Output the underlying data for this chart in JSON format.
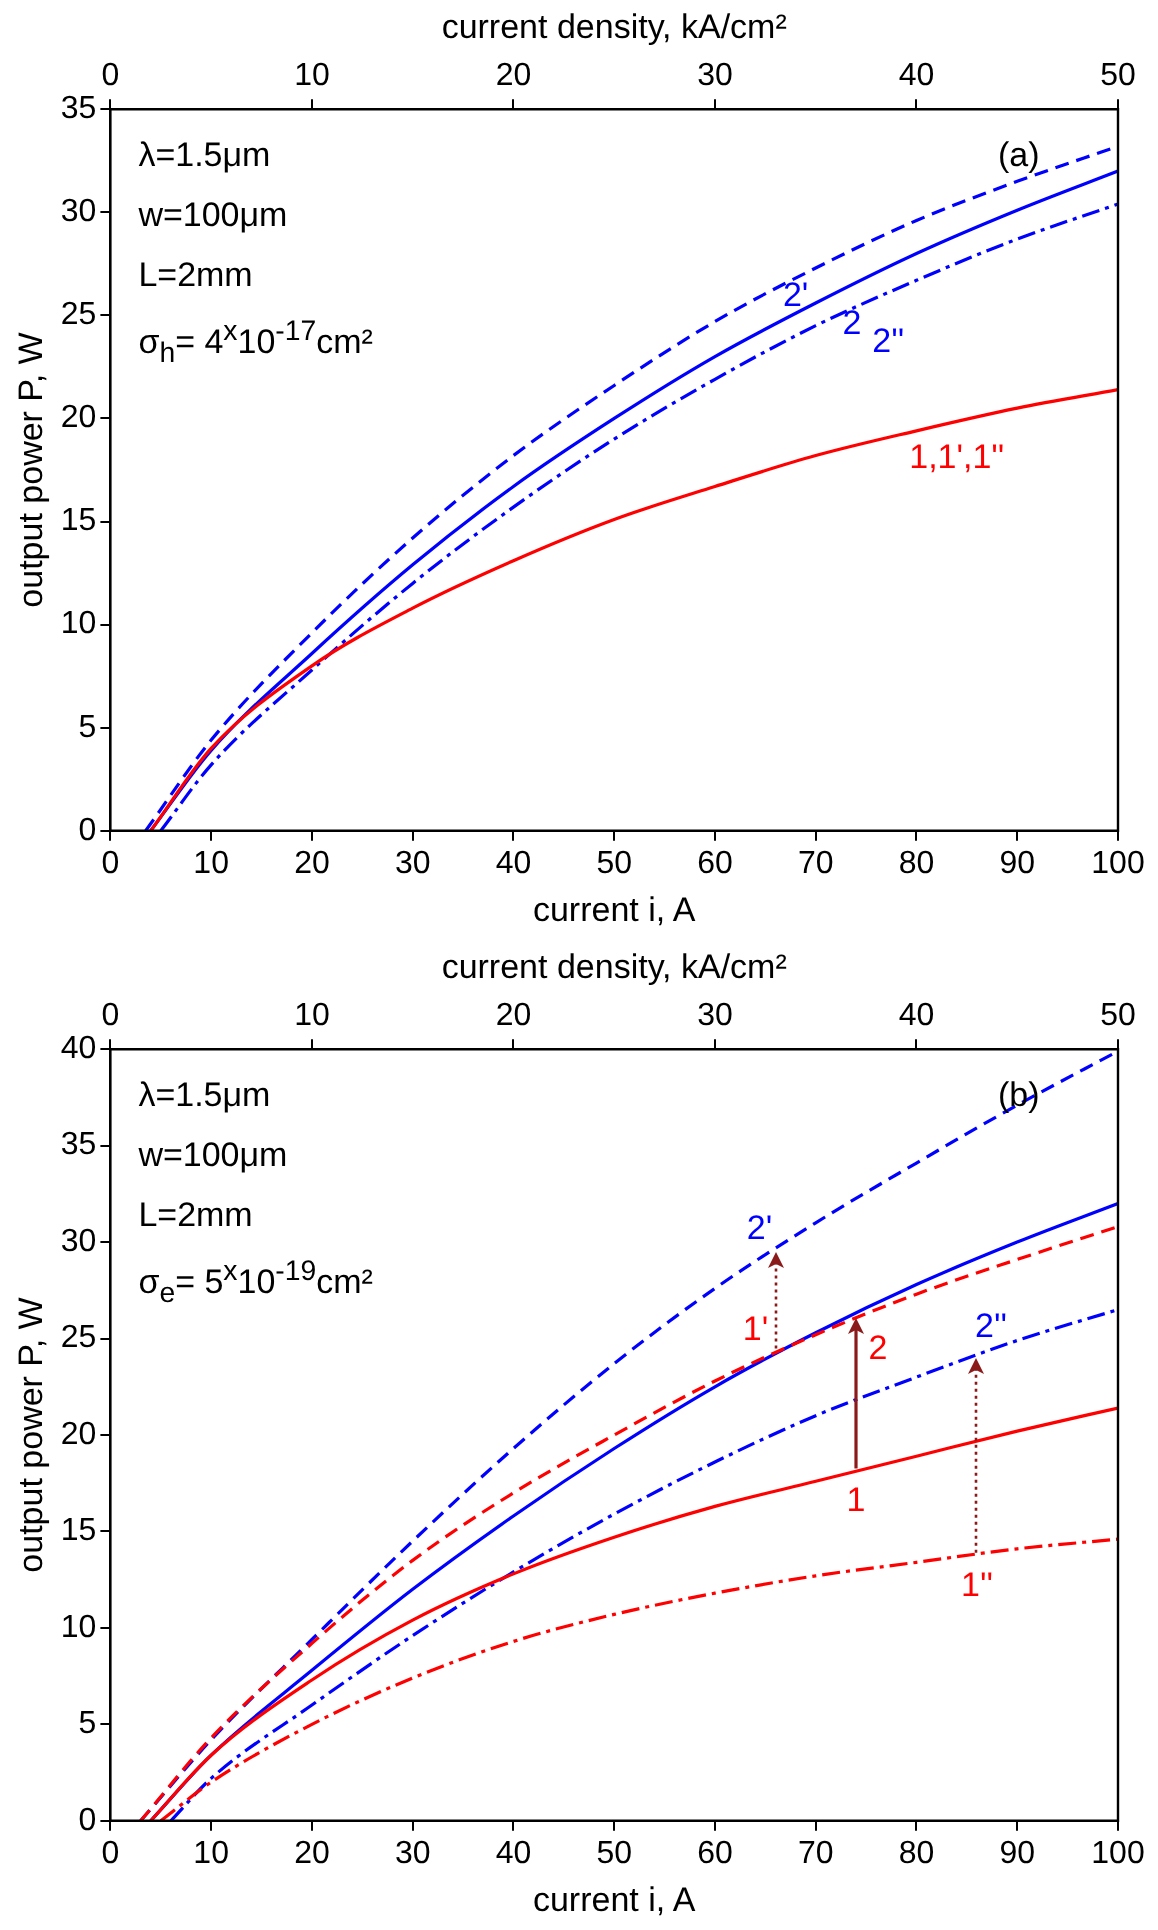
{
  "chart_data": [
    {
      "type": "line",
      "xlabel": "current i, A",
      "ylabel": "output power P, W",
      "x2label": "current density, kA/cm²",
      "xlim": [
        0,
        100
      ],
      "xticks": [
        0,
        10,
        20,
        30,
        40,
        50,
        60,
        70,
        80,
        90,
        100
      ],
      "x2lim": [
        0,
        50
      ],
      "x2ticks": [
        0,
        10,
        20,
        30,
        40,
        50
      ],
      "ylim": [
        0,
        35
      ],
      "yticks": [
        0,
        5,
        10,
        15,
        20,
        25,
        30,
        35
      ],
      "grid": false,
      "legend": false,
      "series": [
        {
          "color": "#ff0000",
          "line_style": "solid",
          "x": [
            4,
            10,
            20,
            30,
            40,
            50,
            60,
            70,
            80,
            90,
            100
          ],
          "values": [
            0,
            4.0,
            8.0,
            10.8,
            13.1,
            15.1,
            16.7,
            18.2,
            19.4,
            20.5,
            21.4
          ]
        },
        {
          "color": "#0000ff",
          "line_style": "solid",
          "x": [
            4,
            10,
            20,
            30,
            40,
            50,
            60,
            70,
            80,
            90,
            100
          ],
          "values": [
            0,
            3.9,
            8.6,
            12.9,
            16.7,
            20.0,
            23.0,
            25.6,
            28.0,
            30.1,
            32.0
          ]
        },
        {
          "color": "#0000ff",
          "line_style": "dashed",
          "x": [
            3.5,
            10,
            20,
            30,
            40,
            50,
            60,
            70,
            80,
            90,
            100
          ],
          "values": [
            0,
            4.4,
            9.6,
            14.2,
            18.2,
            21.6,
            24.7,
            27.3,
            29.6,
            31.5,
            33.2
          ]
        },
        {
          "color": "#0000ff",
          "line_style": "dashdot",
          "x": [
            5,
            10,
            20,
            30,
            40,
            50,
            60,
            70,
            80,
            90,
            100
          ],
          "values": [
            0,
            3.2,
            7.8,
            12.0,
            15.7,
            19.0,
            21.9,
            24.5,
            26.7,
            28.7,
            30.4
          ]
        }
      ],
      "annotations": [
        "λ=1.5μm",
        "w=100μm",
        "L=2mm",
        "σ$_{h}$= 4$^{x}$10$^{-17}$cm²",
        "(a)",
        {
          "text": "2'",
          "x": 68,
          "y": 26.8
        },
        {
          "text": "2",
          "x": 72,
          "y": 26.1
        },
        {
          "text": "2''",
          "x": 76,
          "y": 25.8
        },
        {
          "text": "1,1',1''",
          "x": 84,
          "y": 19.8
        }
      ]
    },
    {
      "type": "line",
      "xlabel": "current i, A",
      "ylabel": "output power P, W",
      "x2label": "current density, kA/cm²",
      "xlim": [
        0,
        100
      ],
      "xticks": [
        0,
        10,
        20,
        30,
        40,
        50,
        60,
        70,
        80,
        90,
        100
      ],
      "x2lim": [
        0,
        50
      ],
      "x2ticks": [
        0,
        10,
        20,
        30,
        40,
        50
      ],
      "ylim": [
        0,
        40
      ],
      "yticks": [
        0,
        5,
        10,
        15,
        20,
        25,
        30,
        35,
        40
      ],
      "grid": false,
      "legend": false,
      "series": [
        {
          "color": "#ff0000",
          "line_style": "solid",
          "x": [
            4,
            10,
            20,
            30,
            40,
            50,
            60,
            70,
            80,
            90,
            100
          ],
          "values": [
            0,
            3.4,
            7.3,
            10.4,
            12.8,
            14.7,
            16.3,
            17.6,
            18.9,
            20.2,
            21.4
          ]
        },
        {
          "color": "#ff0000",
          "line_style": "dashed",
          "x": [
            3,
            10,
            20,
            30,
            40,
            50,
            60,
            70,
            80,
            90,
            100
          ],
          "values": [
            0,
            4.3,
            9.2,
            13.5,
            17.0,
            20.0,
            22.8,
            25.2,
            27.3,
            29.1,
            30.8
          ]
        },
        {
          "color": "#ff0000",
          "line_style": "dashdot",
          "x": [
            5,
            10,
            20,
            30,
            40,
            50,
            60,
            70,
            80,
            90,
            100
          ],
          "values": [
            0,
            2.0,
            5.0,
            7.4,
            9.3,
            10.7,
            11.8,
            12.7,
            13.4,
            14.1,
            14.6
          ]
        },
        {
          "color": "#0000ff",
          "line_style": "solid",
          "x": [
            4,
            10,
            20,
            30,
            40,
            50,
            60,
            70,
            80,
            90,
            100
          ],
          "values": [
            0,
            3.4,
            7.8,
            12.0,
            15.8,
            19.3,
            22.5,
            25.3,
            27.8,
            30.0,
            32.0
          ]
        },
        {
          "color": "#0000ff",
          "line_style": "dashed",
          "x": [
            3,
            10,
            20,
            30,
            40,
            50,
            60,
            70,
            80,
            90,
            100
          ],
          "values": [
            0,
            4.2,
            9.4,
            14.5,
            19.3,
            23.7,
            27.6,
            31.0,
            34.1,
            37.1,
            39.9
          ]
        },
        {
          "color": "#0000ff",
          "line_style": "dashdot",
          "x": [
            6,
            10,
            20,
            30,
            40,
            50,
            60,
            70,
            80,
            90,
            100
          ],
          "values": [
            0,
            2.2,
            6.0,
            9.6,
            12.9,
            15.9,
            18.6,
            21.0,
            23.0,
            24.9,
            26.5
          ]
        }
      ],
      "annotations": [
        "λ=1.5μm",
        "w=100μm",
        "L=2mm",
        "σ$_{e}$= 5$^{x}$10$^{-19}$cm²",
        "(b)",
        {
          "text": "1'",
          "x": 66,
          "y": 24.5
        },
        {
          "text": "2'",
          "x": 66,
          "y": 29.5
        },
        {
          "text": "1",
          "x": 74,
          "y": 18.3
        },
        {
          "text": "2",
          "x": 74,
          "y": 26.1
        },
        {
          "text": "1''",
          "x": 86,
          "y": 13.9
        },
        {
          "text": "2''",
          "x": 86,
          "y": 24.0
        }
      ]
    }
  ]
}
